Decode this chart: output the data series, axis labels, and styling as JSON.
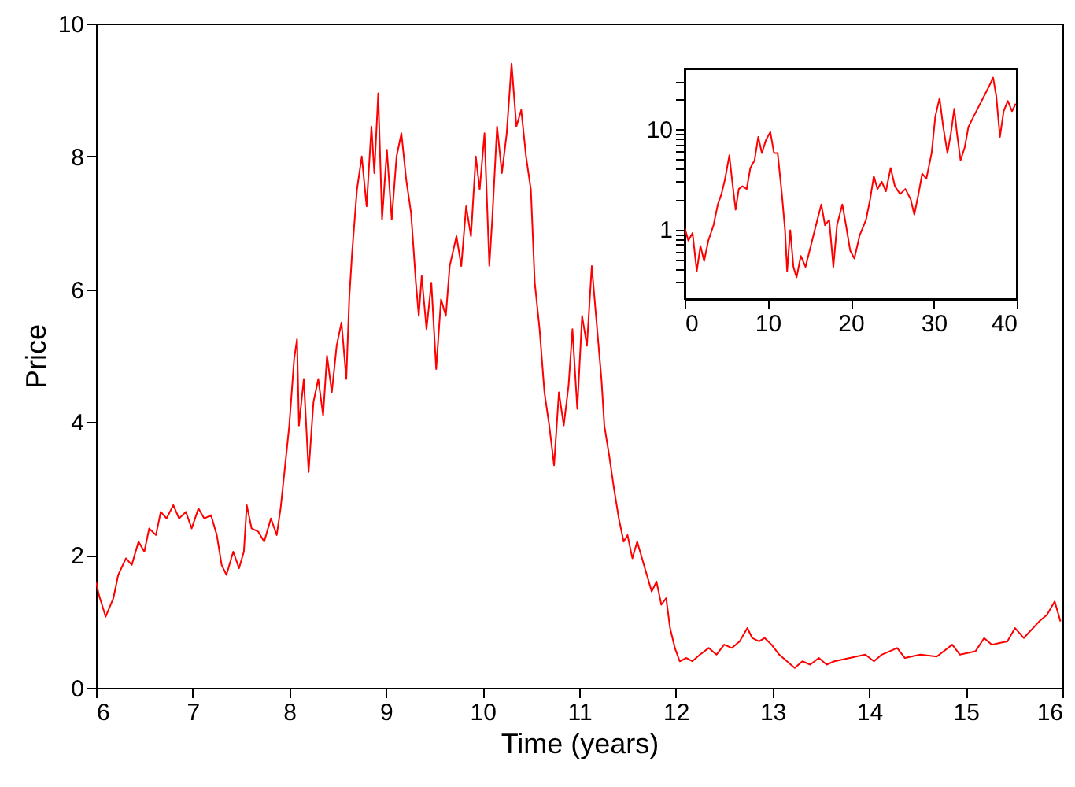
{
  "chart_data": [
    {
      "type": "line",
      "xlabel": "Time (years)",
      "ylabel": "Price",
      "xlim": [
        6,
        16
      ],
      "ylim": [
        0,
        10
      ],
      "xticks": [
        6,
        7,
        8,
        9,
        10,
        11,
        12,
        13,
        14,
        15,
        16
      ],
      "yticks": [
        0,
        2,
        4,
        6,
        8,
        10
      ],
      "grid": false,
      "series": [
        {
          "color": "#ff0000",
          "x": [
            6.0,
            6.03,
            6.1,
            6.18,
            6.23,
            6.31,
            6.37,
            6.44,
            6.5,
            6.55,
            6.62,
            6.67,
            6.73,
            6.8,
            6.86,
            6.93,
            6.99,
            7.06,
            7.12,
            7.19,
            7.25,
            7.3,
            7.35,
            7.42,
            7.48,
            7.53,
            7.56,
            7.61,
            7.68,
            7.74,
            7.81,
            7.87,
            7.91,
            7.95,
            8.0,
            8.05,
            8.08,
            8.1,
            8.15,
            8.2,
            8.25,
            8.3,
            8.35,
            8.39,
            8.44,
            8.49,
            8.54,
            8.59,
            8.62,
            8.65,
            8.7,
            8.75,
            8.8,
            8.85,
            8.88,
            8.92,
            8.96,
            9.01,
            9.06,
            9.11,
            9.16,
            9.21,
            9.26,
            9.31,
            9.34,
            9.37,
            9.42,
            9.47,
            9.52,
            9.57,
            9.62,
            9.66,
            9.73,
            9.78,
            9.83,
            9.88,
            9.93,
            9.97,
            10.02,
            10.07,
            10.1,
            10.15,
            10.2,
            10.25,
            10.3,
            10.35,
            10.4,
            10.45,
            10.5,
            10.54,
            10.59,
            10.64,
            10.69,
            10.74,
            10.79,
            10.84,
            10.89,
            10.93,
            10.98,
            11.03,
            11.08,
            11.13,
            11.18,
            11.23,
            11.26,
            11.31,
            11.36,
            11.41,
            11.46,
            11.5,
            11.55,
            11.6,
            11.65,
            11.7,
            11.75,
            11.8,
            11.85,
            11.9,
            11.94,
            11.99,
            12.04,
            12.11,
            12.17,
            12.25,
            12.34,
            12.42,
            12.5,
            12.58,
            12.66,
            12.74,
            12.79,
            12.86,
            12.92,
            12.99,
            13.07,
            13.15,
            13.23,
            13.31,
            13.39,
            13.48,
            13.56,
            13.64,
            13.8,
            13.96,
            14.05,
            14.13,
            14.29,
            14.37,
            14.53,
            14.7,
            14.86,
            14.94,
            15.1,
            15.19,
            15.27,
            15.43,
            15.51,
            15.6,
            15.76,
            15.84,
            15.92,
            15.98
          ],
          "values": [
            1.6,
            1.4,
            1.07,
            1.35,
            1.7,
            1.95,
            1.85,
            2.2,
            2.05,
            2.4,
            2.3,
            2.65,
            2.55,
            2.75,
            2.55,
            2.65,
            2.4,
            2.7,
            2.55,
            2.6,
            2.3,
            1.85,
            1.7,
            2.05,
            1.8,
            2.05,
            2.75,
            2.4,
            2.35,
            2.2,
            2.55,
            2.3,
            2.7,
            3.25,
            3.95,
            4.95,
            5.25,
            3.95,
            4.65,
            3.25,
            4.3,
            4.65,
            4.1,
            5.0,
            4.45,
            5.15,
            5.5,
            4.65,
            5.85,
            6.55,
            7.5,
            8.0,
            7.25,
            8.45,
            7.75,
            8.95,
            7.05,
            8.1,
            7.05,
            8.0,
            8.35,
            7.65,
            7.15,
            6.1,
            5.6,
            6.2,
            5.4,
            6.1,
            4.8,
            5.85,
            5.6,
            6.35,
            6.8,
            6.35,
            7.25,
            6.8,
            8.0,
            7.5,
            8.35,
            6.35,
            7.05,
            8.45,
            7.75,
            8.35,
            9.4,
            8.45,
            8.7,
            8.0,
            7.5,
            6.1,
            5.4,
            4.45,
            3.95,
            3.35,
            4.45,
            3.95,
            4.55,
            5.4,
            4.2,
            5.6,
            5.15,
            6.35,
            5.5,
            4.65,
            3.95,
            3.5,
            3.0,
            2.55,
            2.2,
            2.3,
            1.95,
            2.2,
            1.95,
            1.7,
            1.45,
            1.6,
            1.25,
            1.35,
            0.9,
            0.6,
            0.4,
            0.45,
            0.4,
            0.5,
            0.6,
            0.5,
            0.65,
            0.6,
            0.7,
            0.9,
            0.75,
            0.7,
            0.75,
            0.65,
            0.5,
            0.4,
            0.3,
            0.4,
            0.35,
            0.45,
            0.35,
            0.4,
            0.45,
            0.5,
            0.4,
            0.5,
            0.6,
            0.45,
            0.5,
            0.47,
            0.65,
            0.5,
            0.55,
            0.75,
            0.65,
            0.7,
            0.9,
            0.75,
            1.0,
            1.1,
            1.3,
            1.0
          ]
        }
      ]
    },
    {
      "type": "line",
      "log": "y",
      "xlim": [
        0,
        40
      ],
      "ylim": [
        0.2,
        40
      ],
      "xticks": [
        0,
        10,
        20,
        30,
        40
      ],
      "yticks": [
        {
          "value": 0.3,
          "label": null
        },
        {
          "value": 0.4,
          "label": null
        },
        {
          "value": 0.5,
          "label": null
        },
        {
          "value": 0.6,
          "label": null
        },
        {
          "value": 0.7,
          "label": null
        },
        {
          "value": 0.8,
          "label": null
        },
        {
          "value": 0.9,
          "label": null
        },
        1,
        {
          "value": 2,
          "label": null
        },
        {
          "value": 3,
          "label": null
        },
        {
          "value": 4,
          "label": null
        },
        {
          "value": 5,
          "label": null
        },
        {
          "value": 6,
          "label": null
        },
        {
          "value": 7,
          "label": null
        },
        {
          "value": 8,
          "label": null
        },
        {
          "value": 9,
          "label": null
        },
        10,
        {
          "value": 20,
          "label": null
        },
        {
          "value": 30,
          "label": null
        }
      ],
      "grid": false,
      "series": [
        {
          "color": "#ff0000",
          "x": [
            0,
            0.44,
            0.95,
            1.46,
            1.9,
            2.34,
            2.85,
            3.48,
            3.99,
            4.43,
            4.87,
            5.38,
            5.76,
            6.14,
            6.52,
            6.96,
            7.47,
            7.91,
            8.42,
            8.86,
            9.3,
            9.81,
            10.32,
            10.76,
            11.2,
            11.71,
            12.09,
            12.34,
            12.72,
            13.1,
            13.48,
            13.99,
            14.56,
            15.19,
            15.82,
            16.46,
            16.9,
            17.41,
            17.91,
            18.35,
            18.99,
            19.43,
            19.94,
            20.44,
            21.08,
            21.84,
            22.34,
            22.78,
            23.23,
            23.73,
            24.24,
            24.81,
            25.32,
            25.95,
            26.58,
            27.22,
            27.66,
            28.16,
            28.61,
            29.11,
            29.75,
            30.19,
            30.7,
            31.14,
            31.65,
            32.09,
            32.47,
            32.78,
            33.23,
            33.73,
            34.18,
            34.81,
            35.44,
            36.08,
            36.71,
            37.15,
            37.53,
            37.97,
            38.42,
            38.92,
            39.43,
            39.87
          ],
          "values": [
            1.04,
            0.77,
            0.92,
            0.38,
            0.68,
            0.48,
            0.77,
            1.1,
            1.77,
            2.25,
            3.2,
            5.5,
            2.86,
            1.57,
            2.53,
            2.7,
            2.53,
            4.1,
            4.9,
            8.4,
            5.8,
            7.9,
            9.4,
            5.8,
            5.8,
            2.25,
            0.98,
            0.38,
            0.98,
            0.42,
            0.33,
            0.54,
            0.42,
            0.68,
            1.1,
            1.77,
            1.1,
            1.24,
            0.42,
            1.1,
            1.77,
            1.1,
            0.61,
            0.51,
            0.87,
            1.24,
            2.0,
            3.4,
            2.53,
            3.0,
            2.4,
            4.1,
            2.7,
            2.25,
            2.53,
            2.0,
            1.4,
            2.25,
            3.6,
            3.2,
            5.8,
            13.5,
            20.5,
            10.6,
            5.8,
            9.4,
            16.1,
            9.4,
            4.9,
            6.6,
            10.6,
            13.5,
            17.1,
            21.7,
            27.5,
            33,
            21.7,
            8.4,
            15.2,
            19.3,
            15.2,
            18.1
          ]
        }
      ]
    }
  ]
}
